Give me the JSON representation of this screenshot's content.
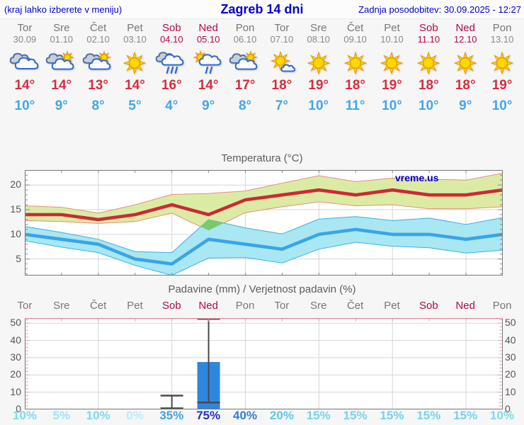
{
  "header": {
    "left": "(kraj lahko izberete v meniju)",
    "title": "Zagreb 14 dni",
    "right": "Zadnja posodobitev: 30.09.2025 - 12:27"
  },
  "days": [
    {
      "name": "Tor",
      "date": "30.09",
      "weekend": false,
      "icon": "cloudy",
      "high": "14°",
      "low": "10°",
      "precip_prob": "10%",
      "prob_color": "#7fd9f1"
    },
    {
      "name": "Sre",
      "date": "01.10",
      "weekend": false,
      "icon": "partly-cloudy",
      "high": "14°",
      "low": "9°",
      "precip_prob": "5%",
      "prob_color": "#9ce4f5"
    },
    {
      "name": "Čet",
      "date": "02.10",
      "weekend": false,
      "icon": "partly-cloudy",
      "high": "13°",
      "low": "8°",
      "precip_prob": "10%",
      "prob_color": "#7fd9f1"
    },
    {
      "name": "Pet",
      "date": "03.10",
      "weekend": false,
      "icon": "sunny",
      "high": "14°",
      "low": "5°",
      "precip_prob": "0%",
      "prob_color": "#b7edf9"
    },
    {
      "name": "Sob",
      "date": "04.10",
      "weekend": true,
      "icon": "rain",
      "high": "16°",
      "low": "4°",
      "precip_prob": "35%",
      "prob_color": "#3ea3e6"
    },
    {
      "name": "Ned",
      "date": "05.10",
      "weekend": true,
      "icon": "sun-rain",
      "high": "14°",
      "low": "9°",
      "precip_prob": "75%",
      "prob_color": "#2130c4"
    },
    {
      "name": "Pon",
      "date": "06.10",
      "weekend": false,
      "icon": "partly-cloudy",
      "high": "17°",
      "low": "8°",
      "precip_prob": "40%",
      "prob_color": "#2f7fd9"
    },
    {
      "name": "Tor",
      "date": "07.10",
      "weekend": false,
      "icon": "mostly-sunny",
      "high": "18°",
      "low": "7°",
      "precip_prob": "20%",
      "prob_color": "#5cc7ec"
    },
    {
      "name": "Sre",
      "date": "08.10",
      "weekend": false,
      "icon": "sunny",
      "high": "19°",
      "low": "10°",
      "precip_prob": "15%",
      "prob_color": "#74d3ef"
    },
    {
      "name": "Čet",
      "date": "09.10",
      "weekend": false,
      "icon": "sunny",
      "high": "18°",
      "low": "11°",
      "precip_prob": "15%",
      "prob_color": "#74d3ef"
    },
    {
      "name": "Pet",
      "date": "10.10",
      "weekend": false,
      "icon": "sunny",
      "high": "19°",
      "low": "10°",
      "precip_prob": "15%",
      "prob_color": "#74d3ef"
    },
    {
      "name": "Sob",
      "date": "11.10",
      "weekend": true,
      "icon": "sunny",
      "high": "18°",
      "low": "10°",
      "precip_prob": "15%",
      "prob_color": "#74d3ef"
    },
    {
      "name": "Ned",
      "date": "12.10",
      "weekend": true,
      "icon": "sunny",
      "high": "18°",
      "low": "9°",
      "precip_prob": "15%",
      "prob_color": "#74d3ef"
    },
    {
      "name": "Pon",
      "date": "13.10",
      "weekend": false,
      "icon": "sunny",
      "high": "19°",
      "low": "10°",
      "precip_prob": "10%",
      "prob_color": "#7fd9f1"
    }
  ],
  "chart_data": [
    {
      "type": "line",
      "title": "Temperatura (°C)",
      "watermark": "vreme.us",
      "categories": [
        "Tor",
        "Sre",
        "Čet",
        "Pet",
        "Sob",
        "Ned",
        "Pon",
        "Tor",
        "Sre",
        "Čet",
        "Pet",
        "Sob",
        "Ned",
        "Pon"
      ],
      "ylim": [
        1.65,
        23.05
      ],
      "yticks": [
        5,
        10,
        15,
        20
      ],
      "grid_day_indices": [
        2,
        4,
        6,
        8,
        10,
        12
      ],
      "legend": "off",
      "series": [
        {
          "name": "high",
          "values": [
            14,
            14,
            13,
            14,
            16,
            14,
            17,
            18,
            19,
            18,
            19,
            18,
            18,
            19
          ]
        },
        {
          "name": "high_upper",
          "values": [
            15.8,
            15.5,
            14.3,
            16,
            18.1,
            18.3,
            18.8,
            20.4,
            21.9,
            20.7,
            21.4,
            21.2,
            21,
            22.4
          ]
        },
        {
          "name": "high_lower",
          "values": [
            12.8,
            12.6,
            12.2,
            12.6,
            14.3,
            10.8,
            14.4,
            15.6,
            16.6,
            15.8,
            16,
            15.2,
            15.2,
            15.6
          ]
        },
        {
          "name": "low",
          "values": [
            10,
            9,
            8,
            5,
            4,
            9,
            8,
            7,
            10,
            11,
            10,
            10,
            9,
            10
          ]
        },
        {
          "name": "low_upper",
          "values": [
            11.6,
            10.4,
            9,
            6.5,
            6.3,
            13,
            11.3,
            10.1,
            13.1,
            13.6,
            12.8,
            13.3,
            12,
            13.4
          ]
        },
        {
          "name": "low_lower",
          "values": [
            8.7,
            7.4,
            6.3,
            3.7,
            1.7,
            5.2,
            5.3,
            4.2,
            7,
            8.4,
            7.6,
            7.3,
            6.2,
            6.8
          ]
        }
      ]
    },
    {
      "type": "bar",
      "title": "Padavine (mm) / Verjetnost padavin (%)",
      "categories": [
        "Tor",
        "Sre",
        "Čet",
        "Pet",
        "Sob",
        "Ned",
        "Pon",
        "Tor",
        "Sre",
        "Čet",
        "Pet",
        "Sob",
        "Ned",
        "Pon"
      ],
      "ylim": [
        0,
        53
      ],
      "yticks": [
        0,
        10,
        20,
        30,
        40,
        50
      ],
      "grid_day_indices": [
        2,
        4,
        6,
        8,
        10,
        12
      ],
      "values": [
        0,
        0,
        0,
        0,
        1.2,
        27.5,
        0,
        0,
        0,
        0,
        0,
        0,
        0,
        0
      ],
      "whiskers": [
        {
          "day_index": 4,
          "low": 0.5,
          "high": 8
        },
        {
          "day_index": 5,
          "low": 4,
          "high": 52.5
        }
      ],
      "probabilities": [
        "10%",
        "5%",
        "10%",
        "0%",
        "35%",
        "75%",
        "40%",
        "20%",
        "15%",
        "15%",
        "15%",
        "15%",
        "15%",
        "10%"
      ]
    }
  ],
  "colors": {
    "header_text": "#0000cd",
    "day_label": "#777777",
    "day_label_weekend": "#b3074e",
    "day_date": "#888888",
    "high_temp": "#d62e3e",
    "low_temp": "#41a7e8",
    "chart_title": "#5c5c5c",
    "axis_label": "#555555",
    "grid": "#d6d6d6",
    "spine": "#777777",
    "tick": "#888888",
    "high_line": "#cc2936",
    "high_band": "#dceba4",
    "high_band_edge": "#e2907c",
    "low_line": "#38a5e6",
    "low_band": "#a9e7f2",
    "low_band_edge": "#3daee9",
    "overlap": "#7cc86e",
    "bar": "#2e87de",
    "whisker": "#4a4a4a",
    "precip_tick": "#eaa4b4",
    "precip_top_spine": "#e786a0",
    "watermark": "#0000cd"
  }
}
